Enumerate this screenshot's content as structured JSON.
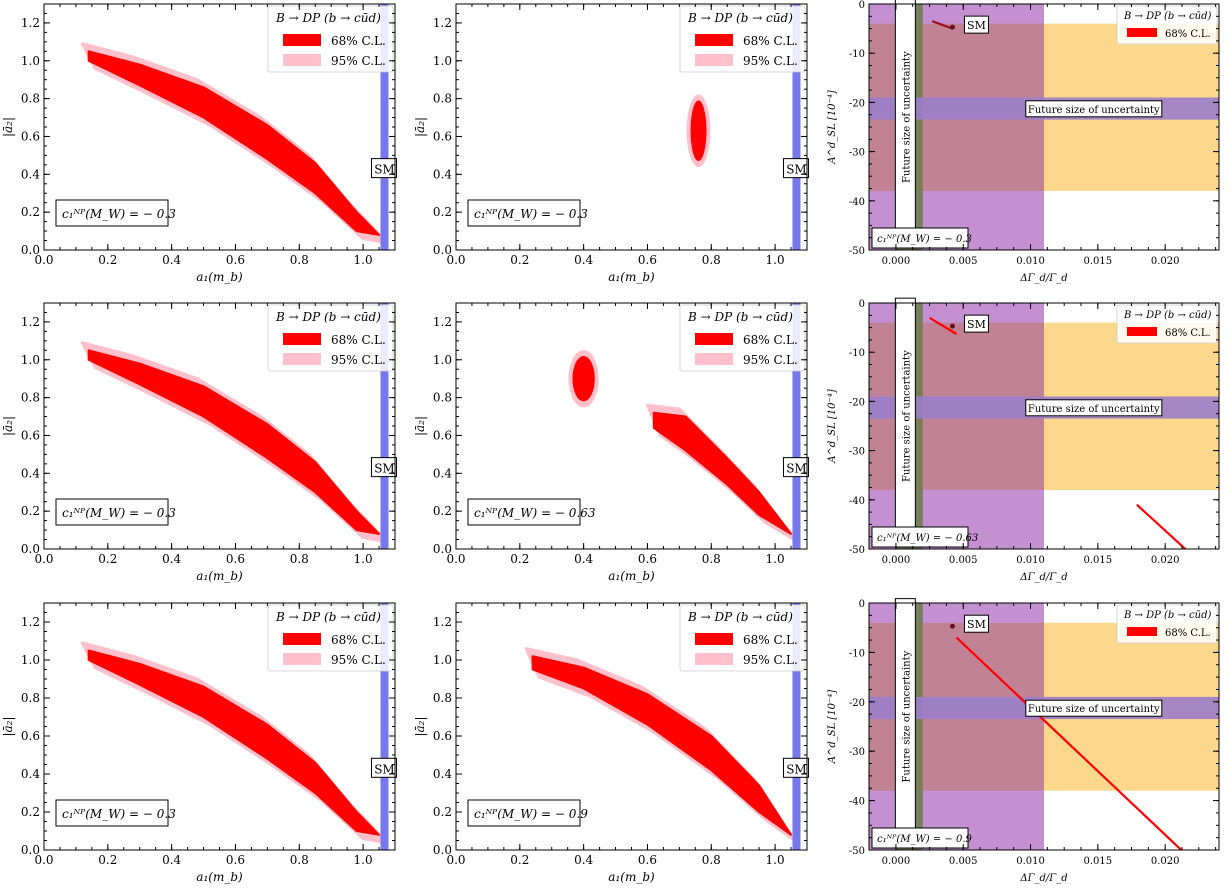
{
  "chart_data": [
    {
      "type": "scatter",
      "row": 0,
      "col": 0,
      "xlabel": "a₁(m_b)",
      "ylabel": "|ā₂|",
      "xlim": [
        0,
        1.1
      ],
      "ylim": [
        0,
        1.3
      ],
      "xticks": [
        "0.0",
        "0.2",
        "0.4",
        "0.6",
        "0.8",
        "1.0"
      ],
      "yticks": [
        "0.0",
        "0.2",
        "0.4",
        "0.6",
        "0.8",
        "1.0",
        "1.2"
      ],
      "legend": {
        "title": "B → DP (b → cūd)",
        "entries": [
          "68% C.L.",
          "95% C.L."
        ]
      },
      "sm_label": "SM",
      "sm_band": {
        "x": 1.067
      },
      "np_label": "c₁ᴺᴾ(M_W) = − 0.3",
      "regions": [
        {
          "level": "68% C.L.",
          "band": {
            "x0": 0.14,
            "x1": 1.05,
            "upper": [
              [
                0.14,
                1.05
              ],
              [
                0.3,
                0.98
              ],
              [
                0.5,
                0.86
              ],
              [
                0.7,
                0.66
              ],
              [
                0.85,
                0.46
              ],
              [
                0.98,
                0.2
              ],
              [
                1.05,
                0.08
              ]
            ],
            "lower": [
              [
                0.14,
                1.0
              ],
              [
                0.3,
                0.87
              ],
              [
                0.5,
                0.7
              ],
              [
                0.7,
                0.48
              ],
              [
                0.85,
                0.3
              ],
              [
                0.98,
                0.1
              ],
              [
                1.05,
                0.08
              ]
            ]
          }
        }
      ]
    },
    {
      "type": "scatter",
      "row": 0,
      "col": 1,
      "xlabel": "a₁(m_b)",
      "ylabel": "|ā₂|",
      "xlim": [
        0,
        1.1
      ],
      "ylim": [
        0,
        1.3
      ],
      "xticks": [
        "0.0",
        "0.2",
        "0.4",
        "0.6",
        "0.8",
        "1.0"
      ],
      "yticks": [
        "0.0",
        "0.2",
        "0.4",
        "0.6",
        "0.8",
        "1.0",
        "1.2"
      ],
      "legend": {
        "title": "B → DP (b → cūd)",
        "entries": [
          "68% C.L.",
          "95% C.L."
        ]
      },
      "sm_label": "SM",
      "sm_band": {
        "x": 1.067
      },
      "np_label": "c₁ᴺᴾ(M_W) = − 0.3",
      "regions": [
        {
          "level": "68% C.L.",
          "ellipse": {
            "cx": 0.76,
            "cy": 0.63,
            "rx": 0.025,
            "ry": 0.16
          }
        }
      ]
    },
    {
      "type": "scatter",
      "row": 0,
      "col": 2,
      "xlabel": "ΔΓ_d/Γ_d",
      "ylabel": "A^d_SL [10⁻⁴]",
      "xlim": [
        -0.002,
        0.024
      ],
      "ylim": [
        -50,
        0
      ],
      "xticks": [
        "0.000",
        "0.005",
        "0.010",
        "0.015",
        "0.020"
      ],
      "yticks": [
        "0",
        "-10",
        "-20",
        "-30",
        "-40",
        "-50"
      ],
      "legend": {
        "title": "B → DP (b → cūd)",
        "entries": [
          "68% C.L."
        ]
      },
      "sm_label": "SM",
      "sm_point": [
        0.0042,
        -4.7
      ],
      "np_label": "c₁ᴺᴾ(M_W) = − 0.3",
      "future_label_v": "Future size of uncertainty",
      "future_label_h": "Future size of uncertainty",
      "segments": [
        [
          [
            0.0027,
            -3.5
          ],
          [
            0.0042,
            -5.0
          ]
        ]
      ]
    },
    {
      "type": "scatter",
      "row": 1,
      "col": 0,
      "xlabel": "a₁(m_b)",
      "ylabel": "|ā₂|",
      "xlim": [
        0,
        1.1
      ],
      "ylim": [
        0,
        1.3
      ],
      "xticks": [
        "0.0",
        "0.2",
        "0.4",
        "0.6",
        "0.8",
        "1.0"
      ],
      "yticks": [
        "0.0",
        "0.2",
        "0.4",
        "0.6",
        "0.8",
        "1.0",
        "1.2"
      ],
      "legend": {
        "title": "B → DP (b → cūd)",
        "entries": [
          "68% C.L.",
          "95% C.L."
        ]
      },
      "sm_label": "SM",
      "sm_band": {
        "x": 1.067
      },
      "np_label": "c₁ᴺᴾ(M_W) = − 0.3",
      "regions": [
        {
          "level": "68% C.L.",
          "band": {
            "x0": 0.14,
            "x1": 1.05,
            "upper": [
              [
                0.14,
                1.05
              ],
              [
                0.3,
                0.98
              ],
              [
                0.5,
                0.86
              ],
              [
                0.7,
                0.66
              ],
              [
                0.85,
                0.46
              ],
              [
                0.98,
                0.2
              ],
              [
                1.05,
                0.08
              ]
            ],
            "lower": [
              [
                0.14,
                1.0
              ],
              [
                0.3,
                0.87
              ],
              [
                0.5,
                0.7
              ],
              [
                0.7,
                0.48
              ],
              [
                0.85,
                0.3
              ],
              [
                0.98,
                0.1
              ],
              [
                1.05,
                0.08
              ]
            ]
          }
        }
      ]
    },
    {
      "type": "scatter",
      "row": 1,
      "col": 1,
      "xlabel": "a₁(m_b)",
      "ylabel": "|ā₂|",
      "xlim": [
        0,
        1.1
      ],
      "ylim": [
        0,
        1.3
      ],
      "xticks": [
        "0.0",
        "0.2",
        "0.4",
        "0.6",
        "0.8",
        "1.0"
      ],
      "yticks": [
        "0.0",
        "0.2",
        "0.4",
        "0.6",
        "0.8",
        "1.0",
        "1.2"
      ],
      "legend": {
        "title": "B → DP (b → cūd)",
        "entries": [
          "68% C.L.",
          "95% C.L."
        ]
      },
      "sm_label": "SM",
      "sm_band": {
        "x": 1.067
      },
      "np_label": "c₁ᴺᴾ(M_W) = − 0.63",
      "regions": [
        {
          "level": "68% C.L.",
          "ellipse": {
            "cx": 0.4,
            "cy": 0.9,
            "rx": 0.035,
            "ry": 0.12
          }
        },
        {
          "level": "68% C.L.",
          "band": {
            "x0": 0.62,
            "x1": 1.05,
            "upper": [
              [
                0.62,
                0.72
              ],
              [
                0.72,
                0.7
              ],
              [
                0.85,
                0.48
              ],
              [
                0.95,
                0.3
              ],
              [
                1.05,
                0.08
              ]
            ],
            "lower": [
              [
                0.62,
                0.64
              ],
              [
                0.72,
                0.52
              ],
              [
                0.85,
                0.34
              ],
              [
                0.95,
                0.18
              ],
              [
                1.05,
                0.08
              ]
            ]
          }
        }
      ]
    },
    {
      "type": "scatter",
      "row": 1,
      "col": 2,
      "xlabel": "ΔΓ_d/Γ_d",
      "ylabel": "A^d_SL [10⁻⁴]",
      "xlim": [
        -0.002,
        0.024
      ],
      "ylim": [
        -50,
        0
      ],
      "xticks": [
        "0.000",
        "0.005",
        "0.010",
        "0.015",
        "0.020"
      ],
      "yticks": [
        "0",
        "-10",
        "-20",
        "-30",
        "-40",
        "-50"
      ],
      "legend": {
        "title": "B → DP (b → cūd)",
        "entries": [
          "68% C.L."
        ]
      },
      "sm_label": "SM",
      "sm_point": [
        0.0042,
        -4.7
      ],
      "np_label": "c₁ᴺᴾ(M_W) = − 0.63",
      "future_label_v": "Future size of uncertainty",
      "future_label_h": "Future size of uncertainty",
      "segments": [
        [
          [
            0.0025,
            -3.0
          ],
          [
            0.0045,
            -6.3
          ]
        ],
        [
          [
            0.0179,
            -41
          ],
          [
            0.0215,
            -50
          ]
        ]
      ]
    },
    {
      "type": "scatter",
      "row": 2,
      "col": 0,
      "xlabel": "a₁(m_b)",
      "ylabel": "|ā₂|",
      "xlim": [
        0,
        1.1
      ],
      "ylim": [
        0,
        1.3
      ],
      "xticks": [
        "0.0",
        "0.2",
        "0.4",
        "0.6",
        "0.8",
        "1.0"
      ],
      "yticks": [
        "0.0",
        "0.2",
        "0.4",
        "0.6",
        "0.8",
        "1.0",
        "1.2"
      ],
      "legend": {
        "title": "B → DP (b → cūd)",
        "entries": [
          "68% C.L.",
          "95% C.L."
        ]
      },
      "sm_label": "SM",
      "sm_band": {
        "x": 1.067
      },
      "np_label": "c₁ᴺᴾ(M_W) = − 0.3",
      "regions": [
        {
          "level": "68% C.L.",
          "band": {
            "x0": 0.14,
            "x1": 1.05,
            "upper": [
              [
                0.14,
                1.05
              ],
              [
                0.3,
                0.98
              ],
              [
                0.5,
                0.86
              ],
              [
                0.7,
                0.66
              ],
              [
                0.85,
                0.46
              ],
              [
                0.98,
                0.2
              ],
              [
                1.05,
                0.08
              ]
            ],
            "lower": [
              [
                0.14,
                1.0
              ],
              [
                0.3,
                0.87
              ],
              [
                0.5,
                0.7
              ],
              [
                0.7,
                0.48
              ],
              [
                0.85,
                0.3
              ],
              [
                0.98,
                0.1
              ],
              [
                1.05,
                0.08
              ]
            ]
          }
        }
      ]
    },
    {
      "type": "scatter",
      "row": 2,
      "col": 1,
      "xlabel": "a₁(m_b)",
      "ylabel": "|ā₂|",
      "xlim": [
        0,
        1.1
      ],
      "ylim": [
        0,
        1.3
      ],
      "xticks": [
        "0.0",
        "0.2",
        "0.4",
        "0.6",
        "0.8",
        "1.0"
      ],
      "yticks": [
        "0.0",
        "0.2",
        "0.4",
        "0.6",
        "0.8",
        "1.0",
        "1.2"
      ],
      "legend": {
        "title": "B → DP (b → cūd)",
        "entries": [
          "68% C.L.",
          "95% C.L."
        ]
      },
      "sm_label": "SM",
      "sm_band": {
        "x": 1.067
      },
      "np_label": "c₁ᴺᴾ(M_W) = − 0.9",
      "regions": [
        {
          "level": "68% C.L.",
          "band": {
            "x0": 0.24,
            "x1": 1.05,
            "upper": [
              [
                0.24,
                1.02
              ],
              [
                0.4,
                0.96
              ],
              [
                0.6,
                0.82
              ],
              [
                0.8,
                0.6
              ],
              [
                0.95,
                0.34
              ],
              [
                1.05,
                0.08
              ]
            ],
            "lower": [
              [
                0.24,
                0.95
              ],
              [
                0.4,
                0.85
              ],
              [
                0.6,
                0.66
              ],
              [
                0.8,
                0.42
              ],
              [
                0.95,
                0.2
              ],
              [
                1.05,
                0.08
              ]
            ]
          }
        }
      ]
    },
    {
      "type": "scatter",
      "row": 2,
      "col": 2,
      "xlabel": "ΔΓ_d/Γ_d",
      "ylabel": "A^d_SL [10⁻⁴]",
      "xlim": [
        -0.002,
        0.024
      ],
      "ylim": [
        -50,
        0
      ],
      "xticks": [
        "0.000",
        "0.005",
        "0.010",
        "0.015",
        "0.020"
      ],
      "yticks": [
        "0",
        "-10",
        "-20",
        "-30",
        "-40",
        "-50"
      ],
      "legend": {
        "title": "B → DP (b → cūd)",
        "entries": [
          "68% C.L."
        ]
      },
      "sm_label": "SM",
      "sm_point": [
        0.0042,
        -4.7
      ],
      "np_label": "c₁ᴺᴾ(M_W) = − 0.9",
      "future_label_v": "Future size of uncertainty",
      "future_label_h": "Future size of uncertainty",
      "segments": [
        [
          [
            0.0045,
            -7
          ],
          [
            0.0212,
            -50
          ]
        ]
      ]
    }
  ],
  "colors": {
    "red": "#ff0000",
    "pink": "#ffc0cb",
    "sm_blue": "#7777ee",
    "purple": "#c490d1",
    "green": "#6b7d4a",
    "orange": "#fcd88c",
    "hband": "#9a7ec8",
    "darkred": "#a01020"
  }
}
